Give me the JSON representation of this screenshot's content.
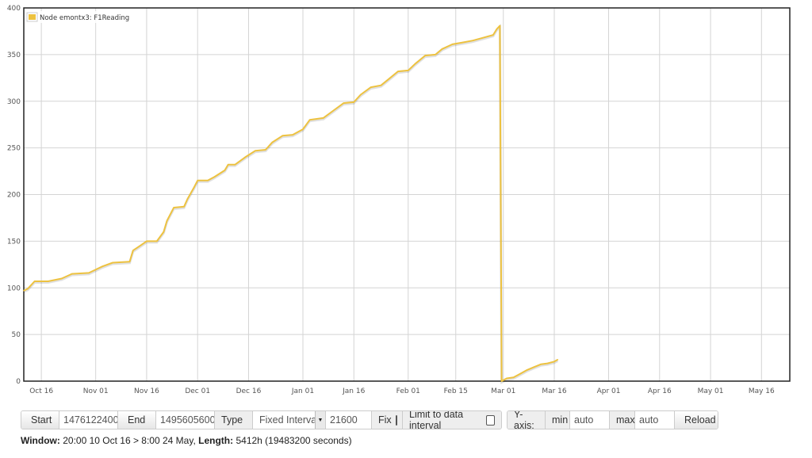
{
  "chart_data": {
    "type": "line",
    "legend_position": "top-left",
    "grid": true,
    "colors": {
      "series": "#edc240"
    },
    "x_ticks": [
      "Oct 16",
      "Nov 01",
      "Nov 16",
      "Dec 01",
      "Dec 16",
      "Jan 01",
      "Jan 16",
      "Feb 01",
      "Feb 15",
      "Mar 01",
      "Mar 16",
      "Apr 01",
      "Apr 16",
      "May 01",
      "May 16"
    ],
    "y_ticks": [
      "0",
      "50",
      "100",
      "150",
      "200",
      "250",
      "300",
      "350",
      "400"
    ],
    "ylim": [
      0,
      400
    ],
    "xlim": [
      "2016-10-10 20:00",
      "2017-05-24 08:00"
    ],
    "series": [
      {
        "name": "Node emontx3: F1Reading",
        "points": [
          [
            "2016-10-10 20:00",
            97
          ],
          [
            "2016-10-12",
            99
          ],
          [
            "2016-10-14",
            107
          ],
          [
            "2016-10-18",
            107
          ],
          [
            "2016-10-22",
            110
          ],
          [
            "2016-10-25",
            115
          ],
          [
            "2016-10-30",
            116
          ],
          [
            "2016-11-03",
            123
          ],
          [
            "2016-11-06",
            127
          ],
          [
            "2016-11-11",
            128
          ],
          [
            "2016-11-12",
            140
          ],
          [
            "2016-11-14",
            145
          ],
          [
            "2016-11-16",
            150
          ],
          [
            "2016-11-19",
            150
          ],
          [
            "2016-11-21",
            160
          ],
          [
            "2016-11-22",
            172
          ],
          [
            "2016-11-24",
            186
          ],
          [
            "2016-11-27",
            187
          ],
          [
            "2016-11-28",
            195
          ],
          [
            "2016-11-30",
            208
          ],
          [
            "2016-12-01",
            215
          ],
          [
            "2016-12-04",
            215
          ],
          [
            "2016-12-06",
            219
          ],
          [
            "2016-12-09",
            226
          ],
          [
            "2016-12-10",
            232
          ],
          [
            "2016-12-12",
            232
          ],
          [
            "2016-12-15",
            240
          ],
          [
            "2016-12-18",
            247
          ],
          [
            "2016-12-21",
            248
          ],
          [
            "2016-12-23",
            256
          ],
          [
            "2016-12-26",
            263
          ],
          [
            "2016-12-29",
            264
          ],
          [
            "2017-01-01",
            270
          ],
          [
            "2017-01-03",
            280
          ],
          [
            "2017-01-07",
            282
          ],
          [
            "2017-01-10",
            290
          ],
          [
            "2017-01-13",
            298
          ],
          [
            "2017-01-16",
            299
          ],
          [
            "2017-01-18",
            307
          ],
          [
            "2017-01-21",
            315
          ],
          [
            "2017-01-24",
            317
          ],
          [
            "2017-01-26",
            323
          ],
          [
            "2017-01-29",
            332
          ],
          [
            "2017-02-01",
            333
          ],
          [
            "2017-02-03",
            340
          ],
          [
            "2017-02-06",
            349
          ],
          [
            "2017-02-09",
            350
          ],
          [
            "2017-02-11",
            356
          ],
          [
            "2017-02-14",
            361
          ],
          [
            "2017-02-17",
            363
          ],
          [
            "2017-02-20",
            365
          ],
          [
            "2017-02-23",
            368
          ],
          [
            "2017-02-26",
            371
          ],
          [
            "2017-02-27",
            377
          ],
          [
            "2017-02-28",
            381
          ],
          [
            "2017-02-28 12:00",
            0
          ],
          [
            "2017-03-02",
            3
          ],
          [
            "2017-03-04",
            4
          ],
          [
            "2017-03-06",
            8
          ],
          [
            "2017-03-08",
            12
          ],
          [
            "2017-03-10",
            15
          ],
          [
            "2017-03-12",
            18
          ],
          [
            "2017-03-14",
            19
          ],
          [
            "2017-03-16",
            21
          ],
          [
            "2017-03-17",
            23
          ]
        ]
      }
    ]
  },
  "toolbar": {
    "start_label": "Start",
    "start_value": "1476122400",
    "end_label": "End",
    "end_value": "1495605600",
    "type_label": "Type",
    "type_value": "Fixed Interval",
    "interval_value": "21600",
    "fix_label": "Fix",
    "limit_label": "Limit to data interval",
    "yaxis_label": "Y-axis:",
    "min_label": "min",
    "min_value": "auto",
    "max_label": "max",
    "max_value": "auto",
    "reload_label": "Reload"
  },
  "status": {
    "window_label": "Window:",
    "window_value": "20:00 10 Oct 16 > 8:00 24 May,",
    "length_label": "Length:",
    "length_value": "5412h (19483200 seconds)"
  }
}
